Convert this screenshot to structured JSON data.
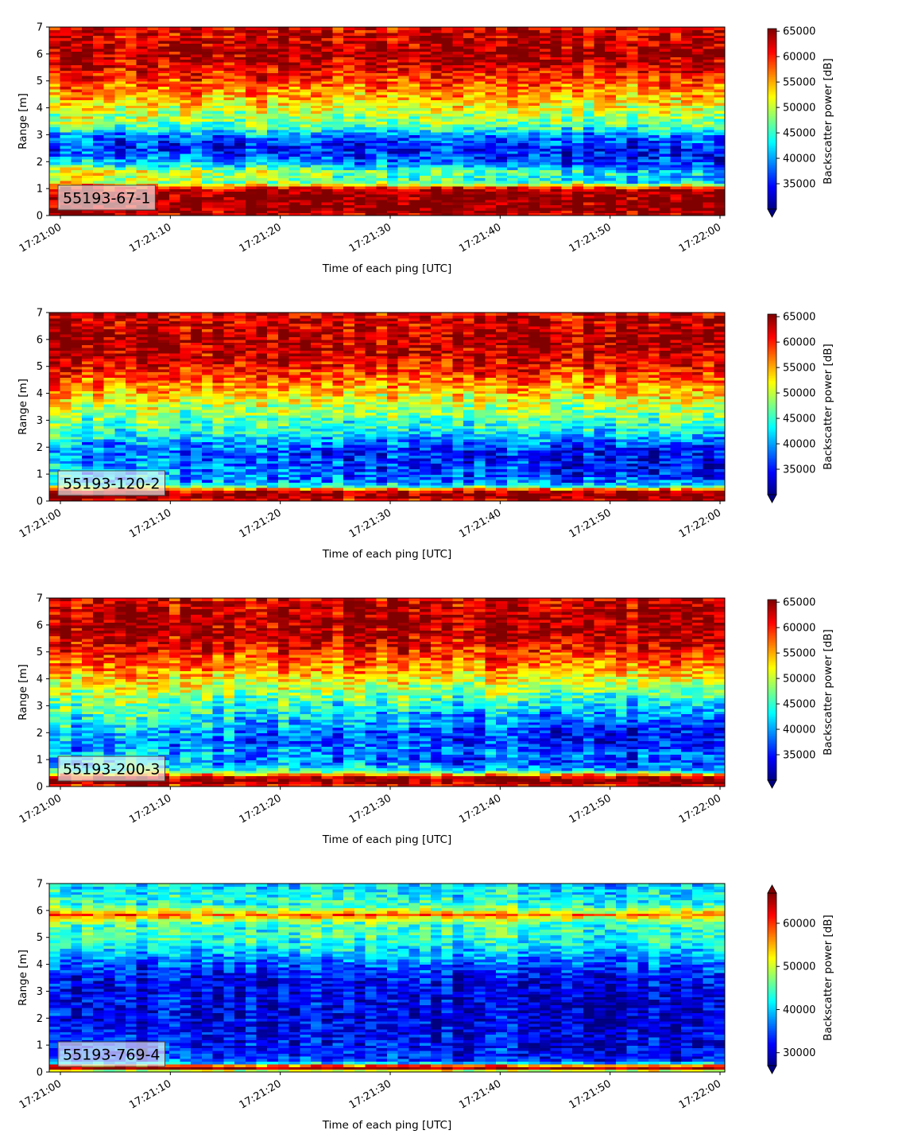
{
  "chart_data": [
    {
      "type": "heatmap",
      "panel_label": "55193-67-1",
      "xlabel": "Time of each ping [UTC]",
      "ylabel": "Range [m]",
      "xlim": [
        "17:21:00",
        "17:22:00"
      ],
      "ylim": [
        0,
        7
      ],
      "x_ticks": [
        "17:21:00",
        "17:21:10",
        "17:21:20",
        "17:21:30",
        "17:21:40",
        "17:21:50",
        "17:22:00"
      ],
      "y_ticks": [
        0,
        1,
        2,
        3,
        4,
        5,
        6,
        7
      ],
      "colorbar": {
        "label": "Backscatter power [dB]",
        "range": [
          30000,
          65500
        ],
        "ticks": [
          35000,
          40000,
          45000,
          50000,
          55000,
          60000,
          65000
        ],
        "extend": "min",
        "colormap": "jet"
      },
      "profile": {
        "range_m": [
          0.0,
          0.1,
          0.2,
          0.3,
          0.5,
          0.8,
          1.0,
          1.1,
          1.2,
          1.4,
          1.6,
          1.8,
          2.0,
          2.2,
          2.5,
          2.8,
          3.0,
          3.2,
          3.5,
          4.0,
          4.5,
          5.0,
          5.5,
          6.0,
          6.5,
          7.0
        ],
        "start_power": [
          62000,
          64000,
          65500,
          65500,
          65500,
          65500,
          63000,
          58000,
          52000,
          52000,
          54000,
          48000,
          42000,
          39000,
          36000,
          37000,
          40000,
          45000,
          49000,
          52000,
          56000,
          59000,
          62000,
          64500,
          63000,
          62000
        ],
        "end_power": [
          62000,
          64000,
          65500,
          65500,
          65500,
          65500,
          63000,
          56000,
          43000,
          40000,
          42000,
          37000,
          35000,
          34000,
          35000,
          37500,
          39000,
          43000,
          47000,
          51000,
          55000,
          58000,
          62000,
          64500,
          63000,
          62000
        ]
      }
    },
    {
      "type": "heatmap",
      "panel_label": "55193-120-2",
      "xlabel": "Time of each ping [UTC]",
      "ylabel": "Range [m]",
      "xlim": [
        "17:21:00",
        "17:22:00"
      ],
      "ylim": [
        0,
        7
      ],
      "x_ticks": [
        "17:21:00",
        "17:21:10",
        "17:21:20",
        "17:21:30",
        "17:21:40",
        "17:21:50",
        "17:22:00"
      ],
      "y_ticks": [
        0,
        1,
        2,
        3,
        4,
        5,
        6,
        7
      ],
      "colorbar": {
        "label": "Backscatter power [dB]",
        "range": [
          30000,
          65500
        ],
        "ticks": [
          35000,
          40000,
          45000,
          50000,
          55000,
          60000,
          65000
        ],
        "extend": "min",
        "colormap": "jet"
      },
      "profile": {
        "range_m": [
          0.0,
          0.1,
          0.2,
          0.3,
          0.4,
          0.5,
          0.6,
          0.8,
          1.0,
          1.2,
          1.5,
          1.8,
          2.0,
          2.3,
          2.6,
          3.0,
          3.5,
          4.0,
          4.5,
          5.0,
          5.5,
          6.0,
          6.5,
          7.0
        ],
        "start_power": [
          60000,
          64000,
          65500,
          65500,
          62000,
          52000,
          44000,
          41000,
          42000,
          41000,
          40000,
          38500,
          40000,
          42000,
          45000,
          47000,
          50000,
          54000,
          58000,
          61000,
          63500,
          64500,
          63000,
          62000
        ],
        "end_power": [
          60000,
          64000,
          65500,
          65500,
          62000,
          50000,
          40000,
          36500,
          34000,
          33500,
          33000,
          33500,
          35000,
          38000,
          42000,
          45500,
          49000,
          53000,
          57000,
          60500,
          63000,
          64000,
          63000,
          62000
        ]
      }
    },
    {
      "type": "heatmap",
      "panel_label": "55193-200-3",
      "xlabel": "Time of each ping [UTC]",
      "ylabel": "Range [m]",
      "xlim": [
        "17:21:00",
        "17:22:00"
      ],
      "ylim": [
        0,
        7
      ],
      "x_ticks": [
        "17:21:00",
        "17:21:10",
        "17:21:20",
        "17:21:30",
        "17:21:40",
        "17:21:50",
        "17:22:00"
      ],
      "y_ticks": [
        0,
        1,
        2,
        3,
        4,
        5,
        6,
        7
      ],
      "colorbar": {
        "label": "Backscatter power [dB]",
        "range": [
          30000,
          65500
        ],
        "ticks": [
          35000,
          40000,
          45000,
          50000,
          55000,
          60000,
          65000
        ],
        "extend": "min",
        "colormap": "jet"
      },
      "profile": {
        "range_m": [
          0.0,
          0.1,
          0.2,
          0.3,
          0.4,
          0.5,
          0.6,
          0.8,
          1.0,
          1.3,
          1.6,
          2.0,
          2.3,
          2.6,
          3.0,
          3.5,
          4.0,
          4.5,
          5.0,
          5.5,
          6.0,
          6.5,
          7.0
        ],
        "start_power": [
          58000,
          64000,
          65500,
          65500,
          60000,
          52000,
          46000,
          43000,
          42000,
          41000,
          40000,
          41500,
          43500,
          45000,
          47000,
          50000,
          53500,
          57000,
          60500,
          63000,
          64500,
          63500,
          62000
        ],
        "end_power": [
          58000,
          64000,
          65500,
          65500,
          60000,
          50000,
          40000,
          36000,
          35000,
          37500,
          34000,
          33500,
          35000,
          37000,
          41000,
          46000,
          51000,
          55500,
          59500,
          62500,
          64000,
          63500,
          62000
        ]
      }
    },
    {
      "type": "heatmap",
      "panel_label": "55193-769-4",
      "xlabel": "Time of each ping [UTC]",
      "ylabel": "Range [m]",
      "xlim": [
        "17:21:00",
        "17:22:00"
      ],
      "ylim": [
        0,
        7
      ],
      "x_ticks": [
        "17:21:00",
        "17:21:10",
        "17:21:20",
        "17:21:30",
        "17:21:40",
        "17:21:50",
        "17:22:00"
      ],
      "y_ticks": [
        0,
        1,
        2,
        3,
        4,
        5,
        6,
        7
      ],
      "colorbar": {
        "label": "Backscatter power [dB]",
        "range": [
          27000,
          67000
        ],
        "ticks": [
          30000,
          40000,
          50000,
          60000
        ],
        "extend": "both",
        "colormap": "jet"
      },
      "profile": {
        "range_m": [
          0.0,
          0.1,
          0.15,
          0.2,
          0.25,
          0.3,
          0.4,
          0.6,
          1.0,
          1.5,
          2.0,
          2.5,
          3.0,
          3.5,
          4.0,
          4.5,
          5.0,
          5.5,
          5.7,
          5.85,
          6.0,
          6.2,
          6.5,
          7.0
        ],
        "start_power": [
          44000,
          56000,
          67000,
          67000,
          58000,
          44000,
          36000,
          34000,
          33000,
          32000,
          31500,
          31500,
          31500,
          32000,
          35000,
          40000,
          44000,
          45000,
          50000,
          58000,
          50000,
          44000,
          43000,
          41000
        ],
        "end_power": [
          44000,
          56000,
          67000,
          67000,
          58000,
          44000,
          34000,
          32000,
          31000,
          30500,
          30000,
          30000,
          30500,
          32000,
          36000,
          40000,
          43500,
          44500,
          50000,
          58000,
          50000,
          43500,
          42000,
          40000
        ]
      }
    }
  ]
}
